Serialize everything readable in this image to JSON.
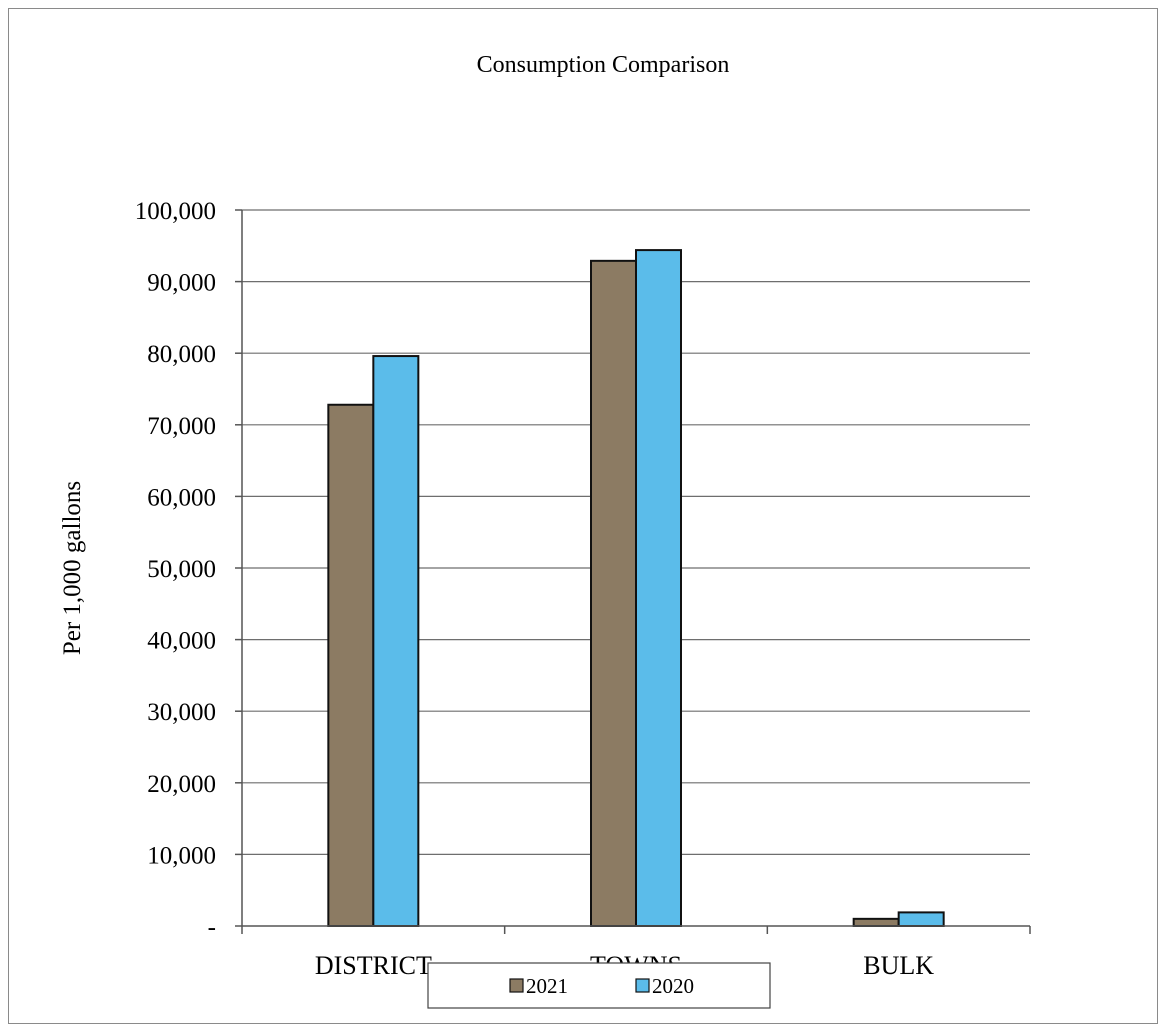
{
  "chart_data": {
    "type": "bar",
    "title": "Consumption Comparison",
    "xlabel": "",
    "ylabel": "Per 1,000 gallons",
    "categories": [
      "DISTRICT",
      "TOWNS",
      "BULK"
    ],
    "series": [
      {
        "name": "2021",
        "values": [
          72800,
          92900,
          1000
        ],
        "color": "#8c7b63"
      },
      {
        "name": "2020",
        "values": [
          79600,
          94400,
          1900
        ],
        "color": "#5bbcea"
      }
    ],
    "ylim": [
      0,
      100000
    ],
    "yticks": [
      0,
      10000,
      20000,
      30000,
      40000,
      50000,
      60000,
      70000,
      80000,
      90000,
      100000
    ],
    "ytick_labels": [
      "-",
      "10,000",
      "20,000",
      "30,000",
      "40,000",
      "50,000",
      "60,000",
      "70,000",
      "80,000",
      "90,000",
      "100,000"
    ],
    "grid": true,
    "legend_position": "bottom"
  }
}
